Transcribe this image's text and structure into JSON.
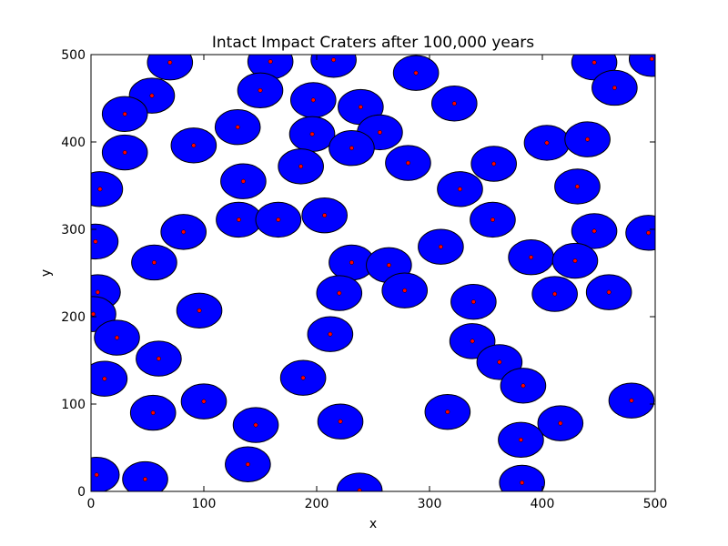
{
  "chart_data": {
    "type": "scatter",
    "title": "Intact Impact Craters after 100,000 years",
    "xlabel": "x",
    "ylabel": "y",
    "xlim": [
      0,
      500
    ],
    "ylim": [
      0,
      500
    ],
    "xticks": [
      "0",
      "100",
      "200",
      "300",
      "400",
      "500"
    ],
    "yticks": [
      "0",
      "100",
      "200",
      "300",
      "400",
      "500"
    ],
    "grid": false,
    "crater_radius": 20,
    "crater_fill": "#0000ff",
    "crater_edge": "#000000",
    "center_marker_color": "#ff0000",
    "points": [
      {
        "x": 70,
        "y": 491
      },
      {
        "x": 159,
        "y": 492
      },
      {
        "x": 215,
        "y": 494
      },
      {
        "x": 288,
        "y": 479
      },
      {
        "x": 446,
        "y": 491
      },
      {
        "x": 497,
        "y": 495
      },
      {
        "x": 54,
        "y": 453
      },
      {
        "x": 150,
        "y": 459
      },
      {
        "x": 30,
        "y": 432
      },
      {
        "x": 197,
        "y": 448
      },
      {
        "x": 239,
        "y": 440
      },
      {
        "x": 322,
        "y": 444
      },
      {
        "x": 464,
        "y": 462
      },
      {
        "x": 130,
        "y": 417
      },
      {
        "x": 196,
        "y": 409
      },
      {
        "x": 256,
        "y": 411
      },
      {
        "x": 30,
        "y": 388
      },
      {
        "x": 91,
        "y": 396
      },
      {
        "x": 231,
        "y": 393
      },
      {
        "x": 404,
        "y": 399
      },
      {
        "x": 440,
        "y": 403
      },
      {
        "x": 281,
        "y": 376
      },
      {
        "x": 357,
        "y": 375
      },
      {
        "x": 186,
        "y": 372
      },
      {
        "x": 8,
        "y": 346
      },
      {
        "x": 135,
        "y": 355
      },
      {
        "x": 327,
        "y": 346
      },
      {
        "x": 431,
        "y": 349
      },
      {
        "x": 131,
        "y": 311
      },
      {
        "x": 166,
        "y": 311
      },
      {
        "x": 207,
        "y": 316
      },
      {
        "x": 356,
        "y": 311
      },
      {
        "x": 4,
        "y": 286
      },
      {
        "x": 82,
        "y": 297
      },
      {
        "x": 310,
        "y": 280
      },
      {
        "x": 446,
        "y": 298
      },
      {
        "x": 494,
        "y": 296
      },
      {
        "x": 56,
        "y": 262
      },
      {
        "x": 231,
        "y": 262
      },
      {
        "x": 264,
        "y": 259
      },
      {
        "x": 390,
        "y": 268
      },
      {
        "x": 429,
        "y": 264
      },
      {
        "x": 6,
        "y": 228
      },
      {
        "x": 220,
        "y": 227
      },
      {
        "x": 278,
        "y": 230
      },
      {
        "x": 339,
        "y": 217
      },
      {
        "x": 411,
        "y": 226
      },
      {
        "x": 459,
        "y": 228
      },
      {
        "x": 2,
        "y": 203
      },
      {
        "x": 96,
        "y": 207
      },
      {
        "x": 23,
        "y": 176
      },
      {
        "x": 212,
        "y": 180
      },
      {
        "x": 338,
        "y": 172
      },
      {
        "x": 60,
        "y": 152
      },
      {
        "x": 362,
        "y": 148
      },
      {
        "x": 12,
        "y": 129
      },
      {
        "x": 188,
        "y": 130
      },
      {
        "x": 383,
        "y": 121
      },
      {
        "x": 100,
        "y": 103
      },
      {
        "x": 479,
        "y": 104
      },
      {
        "x": 55,
        "y": 90
      },
      {
        "x": 316,
        "y": 91
      },
      {
        "x": 146,
        "y": 76
      },
      {
        "x": 221,
        "y": 80
      },
      {
        "x": 416,
        "y": 78
      },
      {
        "x": 381,
        "y": 59
      },
      {
        "x": 139,
        "y": 31
      },
      {
        "x": 5,
        "y": 19
      },
      {
        "x": 48,
        "y": 14
      },
      {
        "x": 382,
        "y": 10
      },
      {
        "x": 238,
        "y": 1
      }
    ]
  }
}
